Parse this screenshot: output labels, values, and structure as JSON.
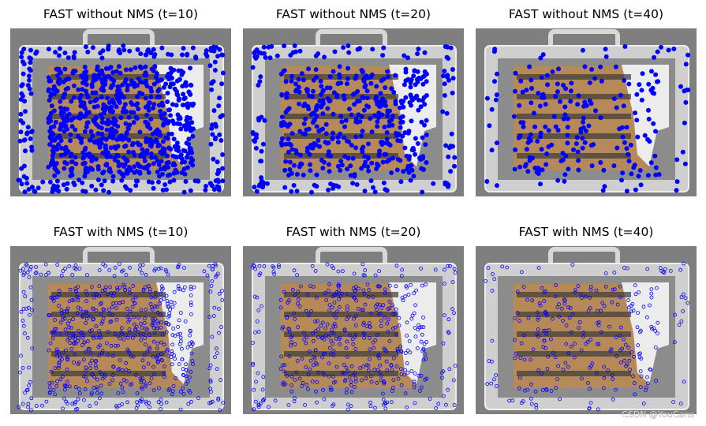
{
  "panels": [
    {
      "title": "FAST without NMS (t=10)"
    },
    {
      "title": "FAST without NMS (t=20)"
    },
    {
      "title": "FAST without NMS (t=40)"
    },
    {
      "title": "FAST with NMS (t=10)"
    },
    {
      "title": "FAST with NMS (t=20)"
    },
    {
      "title": "FAST with NMS (t=40)"
    }
  ],
  "watermark": "CSDN @YouCans"
}
